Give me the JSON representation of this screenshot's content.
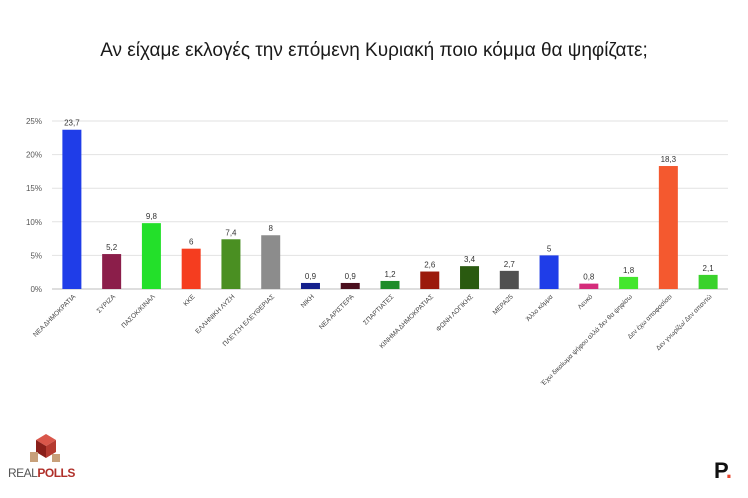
{
  "title": "Αν είχαμε εκλογές την επόμενη Κυριακή ποιο κόμμα θα ψηφίζατε;",
  "logos": {
    "realpolls_a": "REAL",
    "realpolls_b": "POLLS",
    "p_letter": "P",
    "p_dot": "."
  },
  "chart_data": {
    "type": "bar",
    "title": "Αν είχαμε εκλογές την επόμενη Κυριακή ποιο κόμμα θα ψηφίζατε;",
    "xlabel": "",
    "ylabel": "",
    "ylim": [
      0,
      25
    ],
    "yticks": [
      "0%",
      "5%",
      "10%",
      "15%",
      "20%",
      "25%"
    ],
    "grid": true,
    "categories": [
      "ΝΕΑ ΔΗΜΟΚΡΑΤΙΑ",
      "ΣΥΡΙΖΑ",
      "ΠΑΣΟΚ/ΚΙΝΑΛ",
      "ΚΚΕ",
      "ΕΛΛΗΝΙΚΗ ΛΥΣΗ",
      "ΠΛΕΥΣΗ ΕΛΕΥΘΕΡΙΑΣ",
      "ΝΙΚΗ",
      "ΝΕΑ ΑΡΙΣΤΕΡΑ",
      "ΣΠΑΡΤΙΑΤΕΣ",
      "ΚΙΝΗΜΑ ΔΗΜΟΚΡΑΤΙΑΣ",
      "ΦΩΝΗ ΛΟΓΙΚΗΣ",
      "ΜΕΡΑ25",
      "Άλλο κόμμα",
      "Λευκό",
      "Έχω δικαίωμα ψήφου αλλά δεν θα ψηφίσω",
      "Δεν έχω αποφασίσει",
      "Δεν γνωρίζω/ Δεν απαντώ"
    ],
    "values": [
      23.7,
      5.2,
      9.8,
      6,
      7.4,
      8,
      0.9,
      0.9,
      1.2,
      2.6,
      3.4,
      2.7,
      5,
      0.8,
      1.8,
      18.3,
      2.1
    ],
    "value_labels": [
      "23,7",
      "5,2",
      "9,8",
      "6",
      "7,4",
      "8",
      "0,9",
      "0,9",
      "1,2",
      "2,6",
      "3,4",
      "2,7",
      "5",
      "0,8",
      "1,8",
      "18,3",
      "2,1"
    ],
    "colors": [
      "#1f3de8",
      "#8b1e4a",
      "#23e02a",
      "#f53d1f",
      "#4a8f22",
      "#8c8c8c",
      "#14208c",
      "#4a0f1e",
      "#1f8c2a",
      "#9b1a0c",
      "#2a5a10",
      "#505050",
      "#1f3de8",
      "#d42c7a",
      "#44e62e",
      "#f4592f",
      "#3ad22c"
    ]
  }
}
